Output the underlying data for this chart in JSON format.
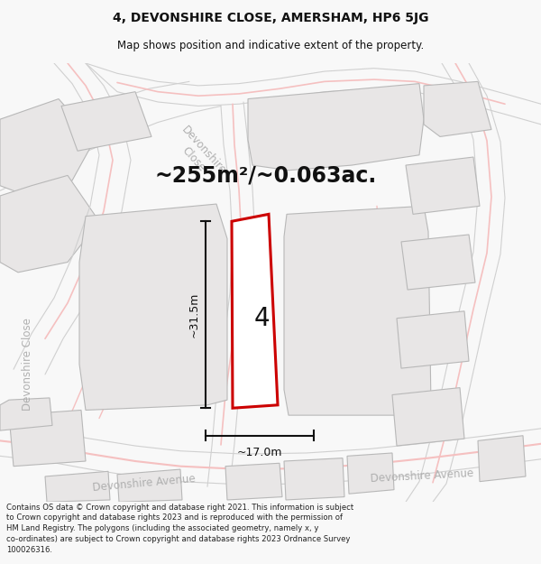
{
  "title_line1": "4, DEVONSHIRE CLOSE, AMERSHAM, HP6 5JG",
  "title_line2": "Map shows position and indicative extent of the property.",
  "area_text": "~255m²/~0.063ac.",
  "label_number": "4",
  "dim_height": "~31.5m",
  "dim_width": "~17.0m",
  "footer_text": "Contains OS data © Crown copyright and database right 2021. This information is subject to Crown copyright and database rights 2023 and is reproduced with the permission of HM Land Registry. The polygons (including the associated geometry, namely x, y co-ordinates) are subject to Crown copyright and database rights 2023 Ordnance Survey 100026316.",
  "bg_color": "#f8f8f8",
  "map_bg": "#f8f8f8",
  "building_fill": "#e8e6e6",
  "building_stroke": "#b8b8b8",
  "property_fill": "#ffffff",
  "property_stroke": "#cc0000",
  "road_pink": "#f5c0c0",
  "road_outline": "#d0d0d0",
  "street_label_color": "#b0b0b0",
  "dim_color": "#111111",
  "title_color": "#111111",
  "footer_color": "#222222",
  "area_text_color": "#111111",
  "number_color": "#111111"
}
